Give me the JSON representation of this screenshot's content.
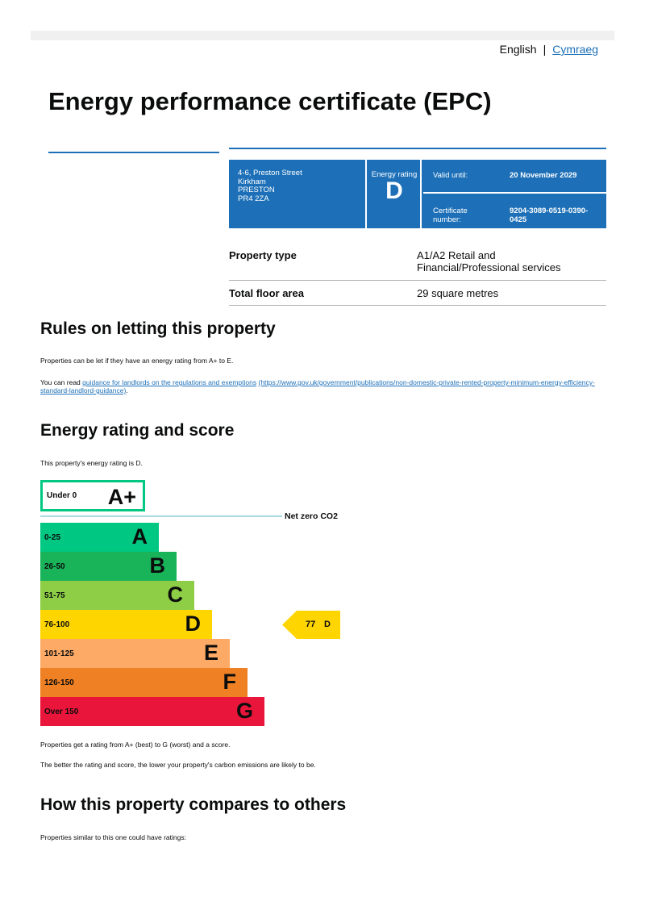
{
  "header": {
    "lang_english": "English",
    "lang_welsh": "Cymraeg"
  },
  "title": "Energy performance certificate (EPC)",
  "summary": {
    "address": [
      "4-6, Preston Street",
      "Kirkham",
      "PRESTON",
      "PR4 2ZA"
    ],
    "rating_label": "Energy rating",
    "rating": "D",
    "valid_until_label": "Valid until:",
    "valid_until": "20 November 2029",
    "cert_label": "Certificate number:",
    "cert_number": "9204-3089-0519-0390-0425"
  },
  "property": [
    {
      "label": "Property type",
      "value": "A1/A2 Retail and Financial/Professional services"
    },
    {
      "label": "Total floor area",
      "value": "29 square metres"
    }
  ],
  "rules": {
    "heading": "Rules on letting this property",
    "p1": "Properties can be let if they have an energy rating from A+ to E.",
    "p2_prefix": "You can read ",
    "link_text": "guidance for landlords on the regulations and exemptions",
    "link_url": "(https://www.gov.uk/government/publications/non-domestic-private-rented-property-minimum-energy-efficiency-standard-landlord-guidance)",
    "p2_suffix": "."
  },
  "rating_section": {
    "heading": "Energy rating and score",
    "intro": "This property's energy rating is D.",
    "net_zero": "Net zero CO2",
    "bands": [
      {
        "range": "Under 0",
        "letter": "A+",
        "color": "#00c781"
      },
      {
        "range": "0-25",
        "letter": "A",
        "color": "#00c781"
      },
      {
        "range": "26-50",
        "letter": "B",
        "color": "#19b459"
      },
      {
        "range": "51-75",
        "letter": "C",
        "color": "#8dce46"
      },
      {
        "range": "76-100",
        "letter": "D",
        "color": "#ffd500"
      },
      {
        "range": "101-125",
        "letter": "E",
        "color": "#fcaa65"
      },
      {
        "range": "126-150",
        "letter": "F",
        "color": "#ef8023"
      },
      {
        "range": "Over 150",
        "letter": "G",
        "color": "#e9153b"
      }
    ],
    "current_score": "77",
    "current_letter": "D",
    "current_color": "#ffd500",
    "note1": "Properties get a rating from A+ (best) to G (worst) and a score.",
    "note2": "The better the rating and score, the lower your property's carbon emissions are likely to be."
  },
  "compare": {
    "heading": "How this property compares to others",
    "intro": "Properties similar to this one could have ratings:"
  }
}
